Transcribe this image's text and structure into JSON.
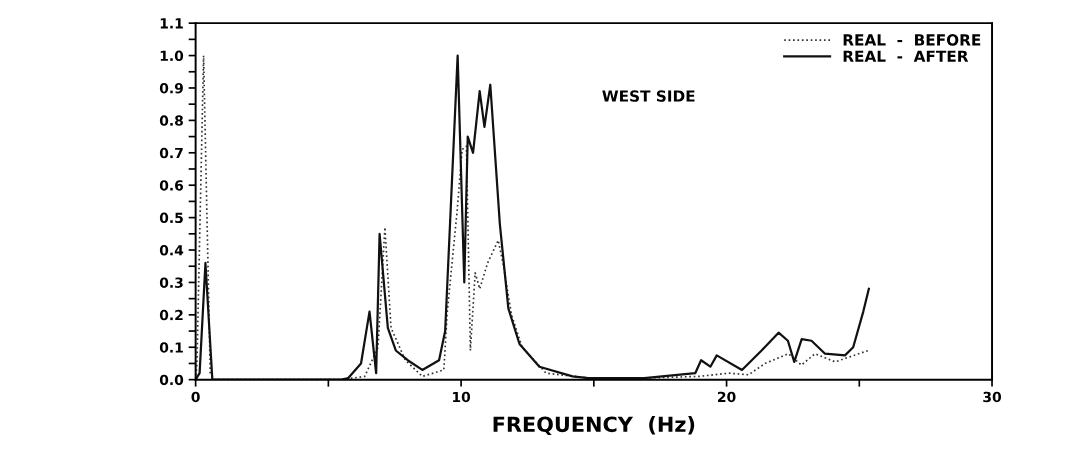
{
  "chart_data": {
    "type": "line",
    "xlabel": "FREQUENCY  (Hz)",
    "annotations": [
      "WEST SIDE"
    ],
    "xlim": [
      0,
      30
    ],
    "ylim": [
      0,
      1.1
    ],
    "xticks": [
      0,
      {
        "value": 5,
        "label": null
      },
      10,
      {
        "value": 15,
        "label": null
      },
      20,
      {
        "value": 25,
        "label": null
      },
      30
    ],
    "yticks": [
      {
        "value": 0,
        "label": "0.0"
      },
      {
        "value": 0.05,
        "label": null
      },
      0.1,
      {
        "value": 0.15,
        "label": null
      },
      0.2,
      {
        "value": 0.25,
        "label": null
      },
      0.3,
      {
        "value": 0.35,
        "label": null
      },
      0.4,
      {
        "value": 0.45,
        "label": null
      },
      0.5,
      {
        "value": 0.55,
        "label": null
      },
      0.6,
      {
        "value": 0.65,
        "label": null
      },
      0.7,
      {
        "value": 0.75,
        "label": null
      },
      0.8,
      {
        "value": 0.85,
        "label": null
      },
      0.9,
      {
        "value": 0.95,
        "label": null
      },
      {
        "value": 1.0,
        "label": "1.0"
      },
      {
        "value": 1.05,
        "label": null
      },
      1.1
    ],
    "grid": false,
    "legend": "top right",
    "series": [
      {
        "name": "REAL  -  BEFORE",
        "color": "#333333",
        "line_style": "dotted",
        "x": [
          0,
          0.05,
          0.3,
          0.55,
          0.7,
          5.5,
          6.37,
          6.87,
          7.13,
          7.36,
          7.9,
          8.54,
          9.35,
          9.48,
          9.85,
          10.04,
          10.2,
          10.35,
          10.53,
          10.7,
          11.0,
          11.4,
          11.6,
          11.9,
          12.3,
          13.2,
          14.8,
          16.9,
          18.95,
          20.08,
          20.83,
          21.45,
          22.33,
          22.82,
          23.33,
          24.09,
          25.34
        ],
        "values": [
          0,
          0.05,
          1.0,
          0.02,
          0,
          0,
          0.01,
          0.1,
          0.47,
          0.16,
          0.06,
          0.01,
          0.03,
          0.21,
          0.52,
          0.71,
          0.72,
          0.09,
          0.33,
          0.28,
          0.36,
          0.43,
          0.35,
          0.2,
          0.1,
          0.02,
          0.005,
          0.005,
          0.01,
          0.02,
          0.015,
          0.05,
          0.08,
          0.045,
          0.08,
          0.055,
          0.09
        ]
      },
      {
        "name": "REAL  -  AFTER",
        "color": "#111111",
        "line_style": "solid",
        "x": [
          0,
          0.15,
          0.37,
          0.63,
          0.8,
          5.5,
          5.75,
          6.23,
          6.55,
          6.8,
          6.93,
          7.24,
          7.54,
          7.99,
          8.54,
          9.17,
          9.4,
          9.87,
          10.12,
          10.25,
          10.45,
          10.7,
          10.88,
          11.1,
          11.46,
          11.78,
          12.2,
          12.95,
          14.2,
          14.8,
          16.9,
          18.82,
          19.04,
          19.39,
          19.63,
          20.58,
          21.32,
          21.96,
          22.31,
          22.55,
          22.83,
          23.2,
          23.71,
          24.46,
          24.77,
          25.15,
          25.36
        ],
        "values": [
          0,
          0.02,
          0.36,
          0,
          0,
          0,
          0.005,
          0.05,
          0.21,
          0.02,
          0.45,
          0.16,
          0.09,
          0.06,
          0.03,
          0.06,
          0.15,
          1.0,
          0.3,
          0.75,
          0.7,
          0.89,
          0.78,
          0.91,
          0.48,
          0.22,
          0.11,
          0.04,
          0.01,
          0.005,
          0.005,
          0.02,
          0.06,
          0.04,
          0.075,
          0.03,
          0.09,
          0.145,
          0.12,
          0.055,
          0.125,
          0.12,
          0.08,
          0.075,
          0.1,
          0.21,
          0.28
        ]
      }
    ]
  }
}
